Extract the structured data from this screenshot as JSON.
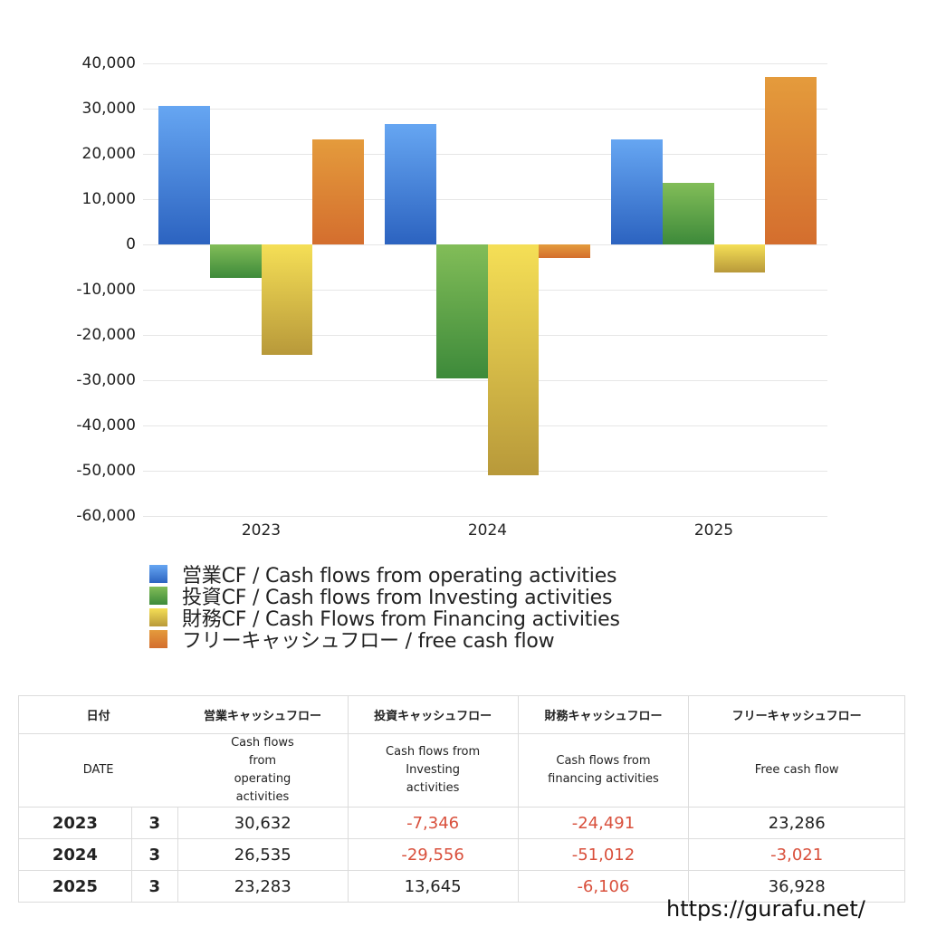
{
  "chart_data": {
    "type": "bar",
    "title": "",
    "xlabel": "",
    "ylabel": "",
    "categories": [
      "2023",
      "2024",
      "2025"
    ],
    "series": [
      {
        "name": "営業CF / Cash flows from operating activities",
        "color": "#4a84dc",
        "values": [
          30632,
          26535,
          23283
        ]
      },
      {
        "name": "投資CF / Cash flows from Investing activities",
        "color": "#5aa048",
        "values": [
          -7346,
          -29556,
          13645
        ]
      },
      {
        "name": "財務CF / Cash Flows from Financing activities",
        "color": "#e2c64a",
        "values": [
          -24491,
          -51012,
          -6106
        ]
      },
      {
        "name": "フリーキャッシュフロー / free cash flow",
        "color": "#dc8434",
        "values": [
          23286,
          -3021,
          36928
        ]
      }
    ],
    "ylim": [
      -60000,
      40000
    ],
    "yticks": [
      "40,000",
      "30,000",
      "20,000",
      "10,000",
      "0",
      "-10,000",
      "-20,000",
      "-30,000",
      "-40,000",
      "-50,000",
      "-60,000"
    ],
    "grid": true,
    "legend_position": "bottom"
  },
  "legend": [
    {
      "label": "営業CF / Cash flows from operating activities"
    },
    {
      "label": "投資CF / Cash flows from Investing activities"
    },
    {
      "label": "財務CF / Cash Flows from Financing activities"
    },
    {
      "label": "フリーキャッシュフロー / free cash flow"
    }
  ],
  "table": {
    "header_jp": [
      "日付",
      "営業キャッシュフロー",
      "投資キャッシュフロー",
      "財務キャッシュフロー",
      "フリーキャッシュフロー"
    ],
    "header_en": [
      "DATE",
      "Cash flows from operating activities",
      "Cash flows from Investing activities",
      "Cash flows from financing activities",
      "Free cash flow"
    ],
    "rows": [
      {
        "year": "2023",
        "month": "3",
        "operating": "30,632",
        "investing": "-7,346",
        "financing": "-24,491",
        "free": "23,286"
      },
      {
        "year": "2024",
        "month": "3",
        "operating": "26,535",
        "investing": "-29,556",
        "financing": "-51,012",
        "free": "-3,021"
      },
      {
        "year": "2025",
        "month": "3",
        "operating": "23,283",
        "investing": "13,645",
        "financing": "-6,106",
        "free": "36,928"
      }
    ]
  },
  "watermark": "https://gurafu.net/"
}
